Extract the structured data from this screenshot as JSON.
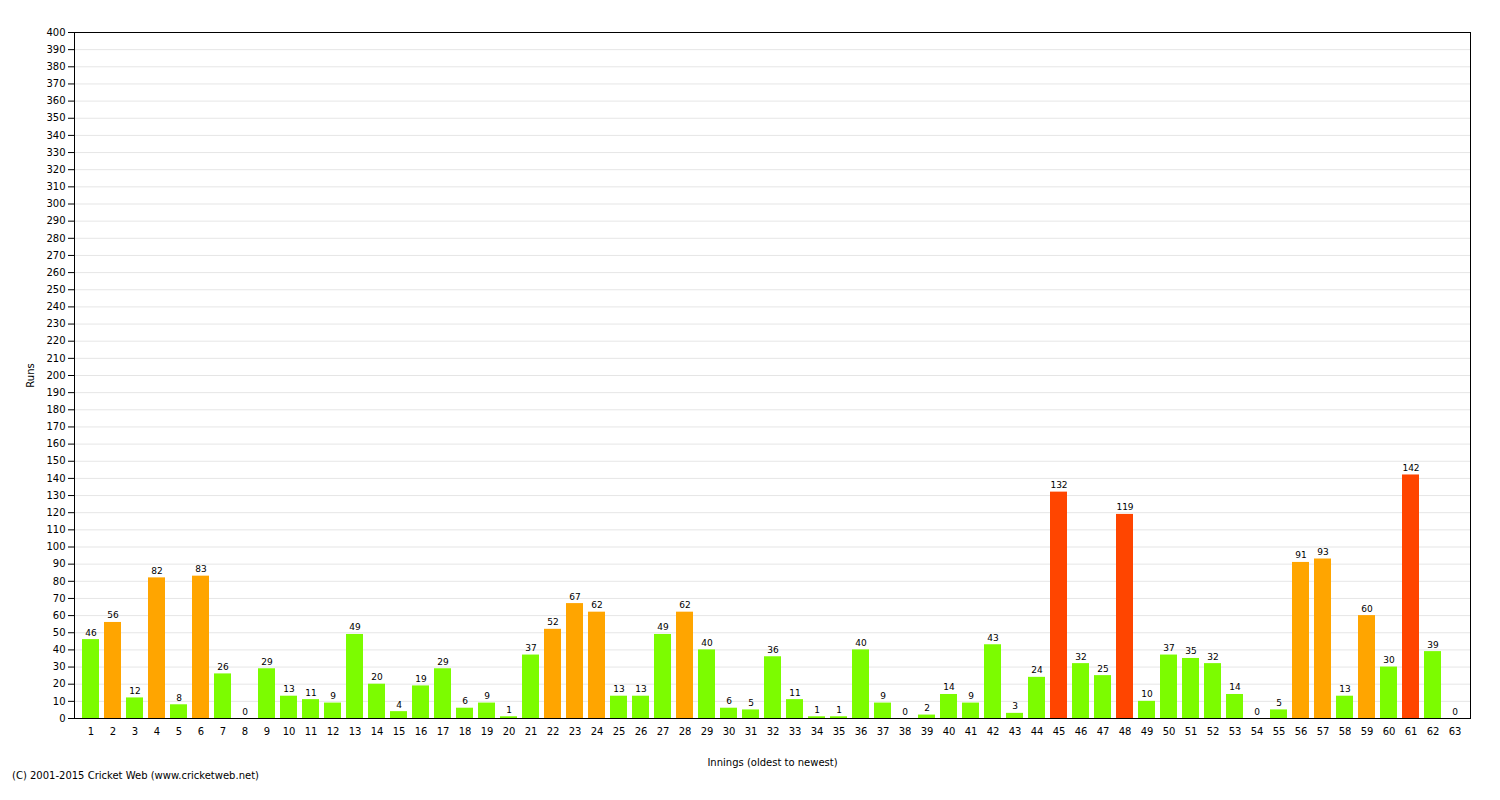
{
  "chart_data": {
    "type": "bar",
    "xlabel": "Innings (oldest to newest)",
    "ylabel": "Runs",
    "annotations": [
      "(C) 2001-2015 Cricket Web (www.cricketweb.net)"
    ],
    "categories": [
      "1",
      "2",
      "3",
      "4",
      "5",
      "6",
      "7",
      "8",
      "9",
      "10",
      "11",
      "12",
      "13",
      "14",
      "15",
      "16",
      "17",
      "18",
      "19",
      "20",
      "21",
      "22",
      "23",
      "24",
      "25",
      "26",
      "27",
      "28",
      "29",
      "30",
      "31",
      "32",
      "33",
      "34",
      "35",
      "36",
      "37",
      "38",
      "39",
      "40",
      "41",
      "42",
      "43",
      "44",
      "45",
      "46",
      "47",
      "48",
      "49",
      "50",
      "51",
      "52",
      "53",
      "54",
      "55",
      "56",
      "57",
      "58",
      "59",
      "60",
      "61",
      "62",
      "63"
    ],
    "values": [
      46,
      56,
      12,
      82,
      8,
      83,
      26,
      0,
      29,
      13,
      11,
      9,
      49,
      20,
      4,
      19,
      29,
      6,
      9,
      1,
      37,
      52,
      67,
      62,
      13,
      13,
      49,
      62,
      40,
      6,
      5,
      36,
      11,
      1,
      1,
      40,
      9,
      0,
      2,
      14,
      9,
      43,
      3,
      24,
      132,
      32,
      25,
      119,
      10,
      37,
      35,
      32,
      14,
      0,
      5,
      91,
      93,
      13,
      60,
      30,
      142,
      39,
      0
    ],
    "colors": [
      "#7cfc00",
      "#ffa500",
      "#7cfc00",
      "#ffa500",
      "#7cfc00",
      "#ffa500",
      "#7cfc00",
      "#7cfc00",
      "#7cfc00",
      "#7cfc00",
      "#7cfc00",
      "#7cfc00",
      "#7cfc00",
      "#7cfc00",
      "#7cfc00",
      "#7cfc00",
      "#7cfc00",
      "#7cfc00",
      "#7cfc00",
      "#7cfc00",
      "#7cfc00",
      "#ffa500",
      "#ffa500",
      "#ffa500",
      "#7cfc00",
      "#7cfc00",
      "#7cfc00",
      "#ffa500",
      "#7cfc00",
      "#7cfc00",
      "#7cfc00",
      "#7cfc00",
      "#7cfc00",
      "#7cfc00",
      "#7cfc00",
      "#7cfc00",
      "#7cfc00",
      "#7cfc00",
      "#7cfc00",
      "#7cfc00",
      "#7cfc00",
      "#7cfc00",
      "#7cfc00",
      "#7cfc00",
      "#ff4500",
      "#7cfc00",
      "#7cfc00",
      "#ff4500",
      "#7cfc00",
      "#7cfc00",
      "#7cfc00",
      "#7cfc00",
      "#7cfc00",
      "#7cfc00",
      "#7cfc00",
      "#ffa500",
      "#ffa500",
      "#7cfc00",
      "#ffa500",
      "#7cfc00",
      "#ff4500",
      "#7cfc00",
      "#7cfc00"
    ],
    "ylim": [
      0,
      400
    ],
    "yticks": [
      0,
      10,
      20,
      30,
      40,
      50,
      60,
      70,
      80,
      90,
      100,
      110,
      120,
      130,
      140,
      150,
      160,
      170,
      180,
      190,
      200,
      210,
      220,
      230,
      240,
      250,
      260,
      270,
      280,
      290,
      300,
      310,
      320,
      330,
      340,
      350,
      360,
      370,
      380,
      390,
      400
    ],
    "grid": true,
    "data_labels": true
  }
}
